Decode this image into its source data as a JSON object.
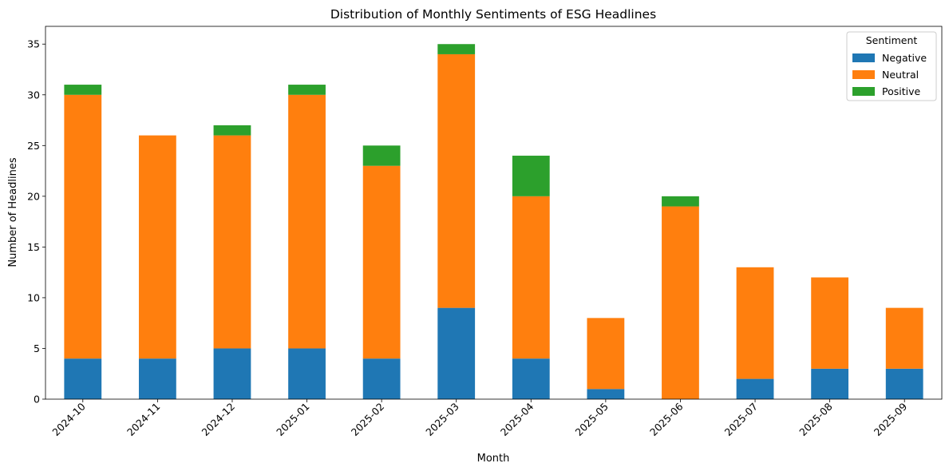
{
  "chart_data": {
    "type": "bar",
    "stacked": true,
    "title": "Distribution of Monthly Sentiments of ESG Headlines",
    "xlabel": "Month",
    "ylabel": "Number of Headlines",
    "ylim": [
      0,
      36.75
    ],
    "yticks": [
      "0",
      "5",
      "10",
      "15",
      "20",
      "25",
      "30",
      "35"
    ],
    "grid": false,
    "legend": {
      "title": "Sentiment",
      "placement": "top-right"
    },
    "categories": [
      "2024-10",
      "2024-11",
      "2024-12",
      "2025-01",
      "2025-02",
      "2025-03",
      "2025-04",
      "2025-05",
      "2025-06",
      "2025-07",
      "2025-08",
      "2025-09"
    ],
    "series": [
      {
        "name": "Negative",
        "color": "#1f77b4",
        "values": [
          4,
          4,
          5,
          5,
          4,
          9,
          4,
          1,
          0,
          2,
          3,
          3
        ]
      },
      {
        "name": "Neutral",
        "color": "#ff7f0e",
        "values": [
          26,
          22,
          21,
          25,
          19,
          25,
          16,
          7,
          19,
          11,
          9,
          6
        ]
      },
      {
        "name": "Positive",
        "color": "#2ca02c",
        "values": [
          1,
          0,
          1,
          1,
          2,
          1,
          4,
          0,
          1,
          0,
          0,
          0
        ]
      }
    ]
  }
}
